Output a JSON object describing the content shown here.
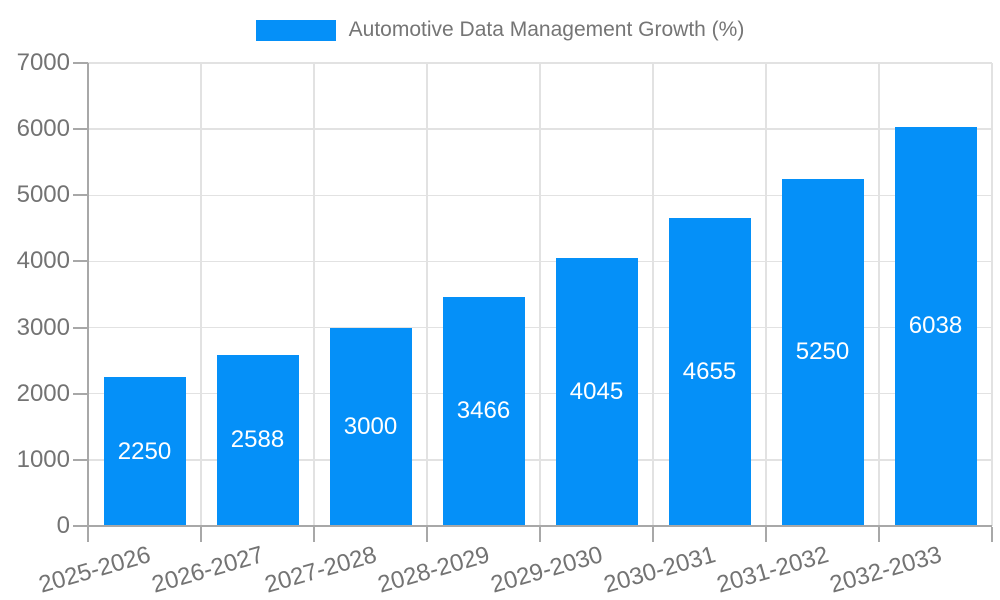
{
  "legend": {
    "label": "Automotive Data Management Growth (%)"
  },
  "chart_data": {
    "type": "bar",
    "title": "",
    "xlabel": "",
    "ylabel": "",
    "series_name": "Automotive Data Management Growth (%)",
    "categories": [
      "2025-2026",
      "2026-2027",
      "2027-2028",
      "2028-2029",
      "2029-2030",
      "2030-2031",
      "2031-2032",
      "2032-2033"
    ],
    "values": [
      2250,
      2588,
      3000,
      3466,
      4045,
      4655,
      5250,
      6038
    ],
    "yticks": [
      0,
      1000,
      2000,
      3000,
      4000,
      5000,
      6000,
      7000
    ],
    "ylim": [
      0,
      7000
    ],
    "grid": true,
    "legend_position": "top-center",
    "value_label_position": "inside-center"
  },
  "colors": {
    "bar": "#0590f8",
    "grid": "#e2e2e2",
    "axis": "#a8a8a8",
    "tick_text": "#737373",
    "legend_text": "#757575",
    "value_text": "#ffffff",
    "background": "#ffffff"
  }
}
